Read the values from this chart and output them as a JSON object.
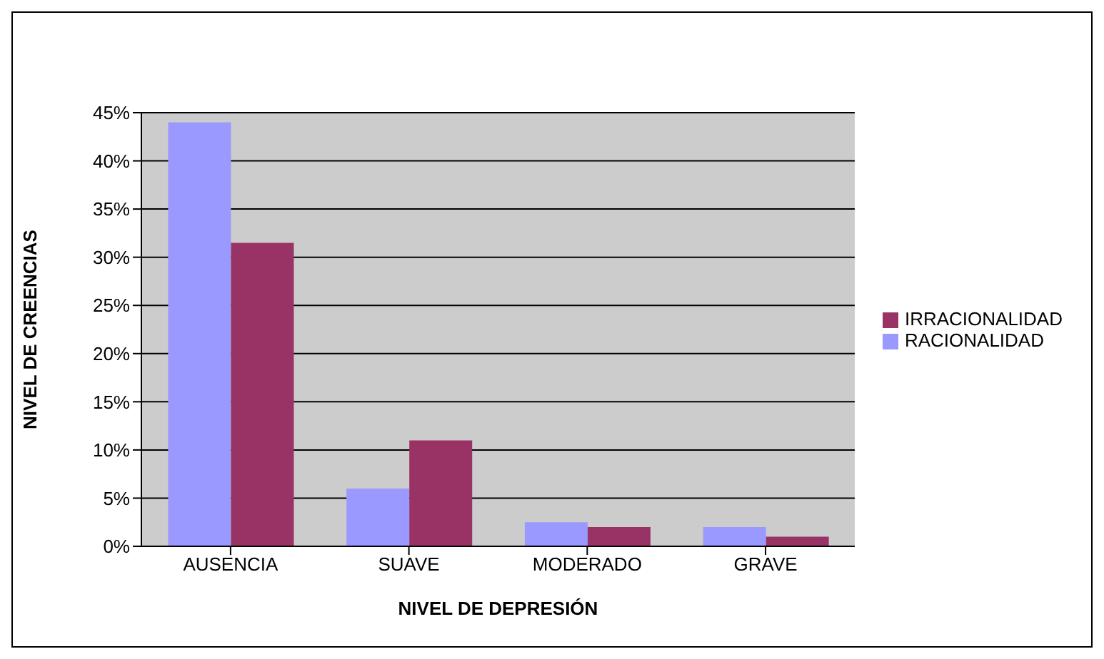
{
  "chart_data": {
    "type": "bar",
    "xlabel": "NIVEL DE DEPRESIÓN",
    "ylabel": "NIVEL DE CREENCIAS",
    "categories": [
      "AUSENCIA",
      "SUAVE",
      "MODERADO",
      "GRAVE"
    ],
    "series": [
      {
        "name": "RACIONALIDAD",
        "color": "#9999ff",
        "values": [
          44,
          6,
          2.5,
          2
        ]
      },
      {
        "name": "IRRACIONALIDAD",
        "color": "#993366",
        "values": [
          31.5,
          11,
          2,
          1
        ]
      }
    ],
    "ylim": [
      0,
      45
    ],
    "yticks": [
      {
        "value": 0,
        "label": "0%"
      },
      {
        "value": 5,
        "label": "5%"
      },
      {
        "value": 10,
        "label": "10%"
      },
      {
        "value": 15,
        "label": "15%"
      },
      {
        "value": 20,
        "label": "20%"
      },
      {
        "value": 25,
        "label": "25%"
      },
      {
        "value": 30,
        "label": "30%"
      },
      {
        "value": 35,
        "label": "35%"
      },
      {
        "value": 40,
        "label": "40%"
      },
      {
        "value": 45,
        "label": "45%"
      }
    ],
    "grid": "y",
    "legend": "right"
  }
}
